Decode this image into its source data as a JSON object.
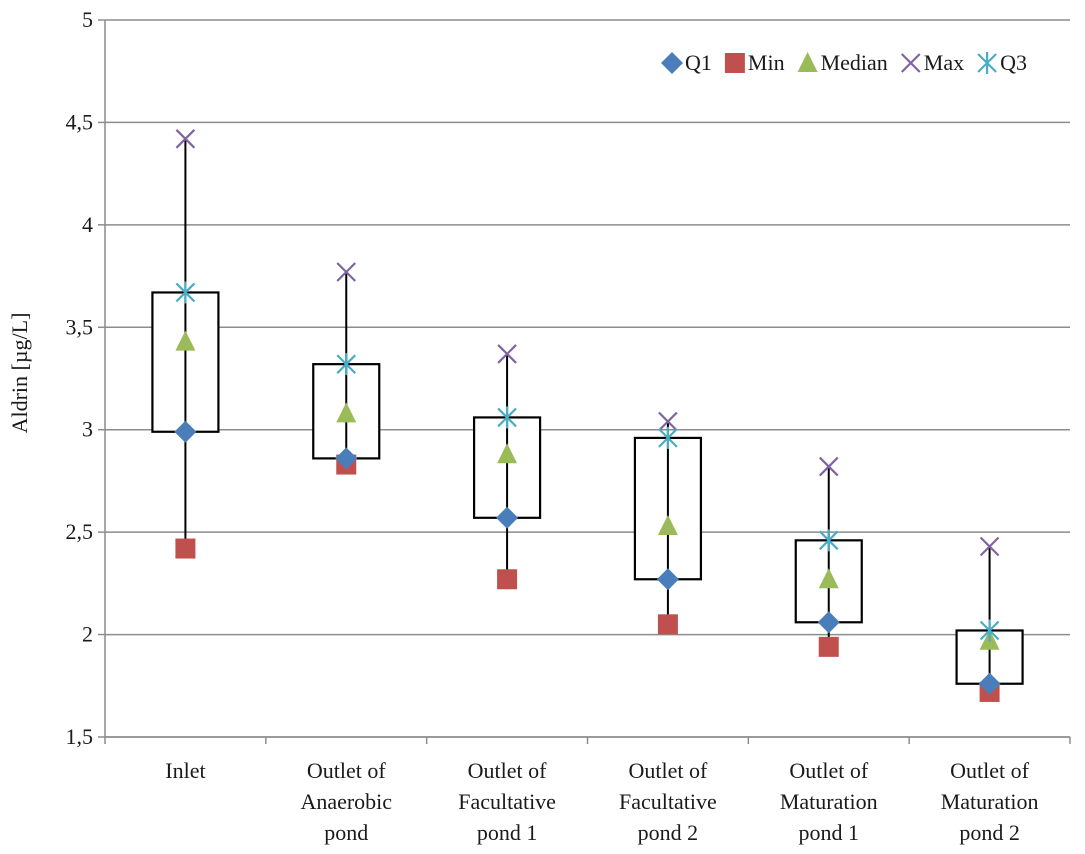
{
  "chart_data": {
    "type": "box",
    "title": "",
    "xlabel": "",
    "ylabel": "Aldrin [µg/L]",
    "ylim": [
      1.5,
      5
    ],
    "y_ticks": [
      "1,5",
      "2",
      "2,5",
      "3",
      "3,5",
      "4",
      "4,5",
      "5"
    ],
    "y_tick_values": [
      1.5,
      2,
      2.5,
      3,
      3.5,
      4,
      4.5,
      5
    ],
    "grid": true,
    "legend_position": "top-right",
    "categories": [
      [
        "Inlet"
      ],
      [
        "Outlet of",
        "Anaerobic",
        "pond"
      ],
      [
        "Outlet of",
        "Facultative",
        "pond 1"
      ],
      [
        "Outlet of",
        "Facultative",
        "pond 2"
      ],
      [
        "Outlet of",
        "Maturation",
        "pond 1"
      ],
      [
        "Outlet of",
        "Maturation",
        "pond 2"
      ]
    ],
    "series": [
      {
        "name": "Q1",
        "marker": "diamond",
        "color": "#4a7ebb",
        "values": [
          2.99,
          2.86,
          2.57,
          2.27,
          2.06,
          1.76
        ]
      },
      {
        "name": "Min",
        "marker": "square",
        "color": "#c0504d",
        "values": [
          2.42,
          2.83,
          2.27,
          2.05,
          1.94,
          1.72
        ]
      },
      {
        "name": "Median",
        "marker": "triangle",
        "color": "#9bbb59",
        "values": [
          3.43,
          3.08,
          2.88,
          2.53,
          2.27,
          1.97
        ]
      },
      {
        "name": "Max",
        "marker": "x",
        "color": "#8064a2",
        "values": [
          4.42,
          3.77,
          3.37,
          3.04,
          2.82,
          2.43
        ]
      },
      {
        "name": "Q3",
        "marker": "star",
        "color": "#4bacc6",
        "values": [
          3.67,
          3.32,
          3.06,
          2.96,
          2.46,
          2.02
        ]
      }
    ]
  }
}
